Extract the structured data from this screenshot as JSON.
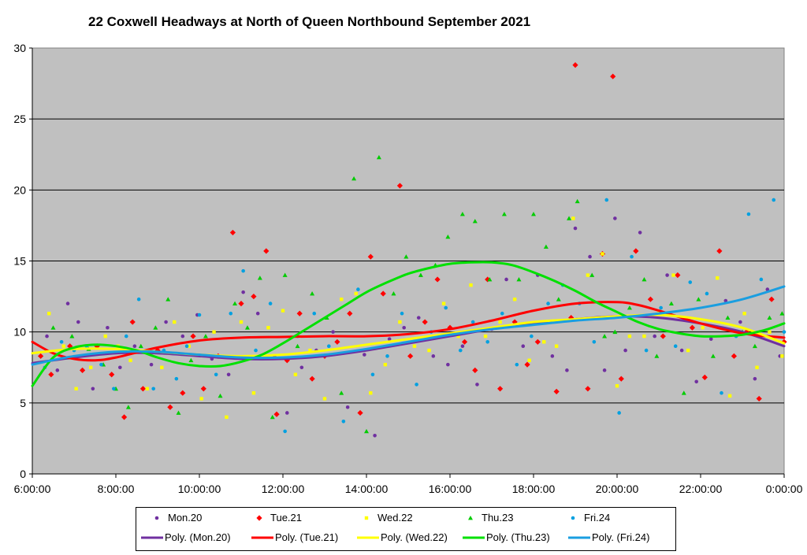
{
  "chart_data": {
    "type": "scatter",
    "title": "22 Coxwell Headways at North of Queen Northbound September 2021",
    "xlabel": "",
    "ylabel": "",
    "xlim": [
      6,
      24
    ],
    "ylim": [
      0,
      30
    ],
    "x_ticks": [
      "6:00:00",
      "8:00:00",
      "10:00:00",
      "12:00:00",
      "14:00:00",
      "16:00:00",
      "18:00:00",
      "20:00:00",
      "22:00:00",
      "0:00:00"
    ],
    "y_ticks": [
      "0",
      "5",
      "10",
      "15",
      "20",
      "25",
      "30"
    ],
    "grid": "horizontal",
    "background_color": "#c0c0c0",
    "legend_placement": "bottom",
    "x_unit": "hour of day (24 = 0:00:00 next day)",
    "series": [
      {
        "name": "Mon.20",
        "marker": "circle",
        "color": "#7030a0",
        "x": [
          6.35,
          6.6,
          6.85,
          7.1,
          7.45,
          7.8,
          8.1,
          8.45,
          8.85,
          9.2,
          9.6,
          9.95,
          10.3,
          10.7,
          11.05,
          11.4,
          11.8,
          12.1,
          12.45,
          12.8,
          13.2,
          13.55,
          13.95,
          14.2,
          14.55,
          14.9,
          15.25,
          15.6,
          15.95,
          16.3,
          16.65,
          17.0,
          17.35,
          17.75,
          18.1,
          18.45,
          18.8,
          19.0,
          19.35,
          19.7,
          19.95,
          20.2,
          20.55,
          20.9,
          21.2,
          21.55,
          21.9,
          22.25,
          22.6,
          22.95,
          23.3,
          23.6,
          23.9
        ],
        "y": [
          9.7,
          7.3,
          12.0,
          10.7,
          6.0,
          10.3,
          7.5,
          9.0,
          7.7,
          10.7,
          9.7,
          11.2,
          8.1,
          7.0,
          12.8,
          11.3,
          8.3,
          4.3,
          7.5,
          8.7,
          10.0,
          4.7,
          8.4,
          2.7,
          9.5,
          10.3,
          11.0,
          8.3,
          7.7,
          9.0,
          6.3,
          10.2,
          13.7,
          9.0,
          14.0,
          8.3,
          7.3,
          17.3,
          15.3,
          7.3,
          18.0,
          8.7,
          17.0,
          9.7,
          14.0,
          8.7,
          6.5,
          9.5,
          12.2,
          10.7,
          6.7,
          13.0,
          8.3
        ]
      },
      {
        "name": "Tue.21",
        "marker": "diamond",
        "color": "#ff0000",
        "x": [
          6.2,
          6.45,
          6.9,
          7.2,
          7.55,
          7.9,
          8.2,
          8.4,
          8.65,
          9.0,
          9.3,
          9.6,
          9.85,
          10.1,
          10.45,
          10.8,
          11.0,
          11.3,
          11.6,
          11.85,
          12.1,
          12.4,
          12.7,
          13.0,
          13.3,
          13.6,
          13.85,
          14.1,
          14.4,
          14.8,
          15.05,
          15.4,
          15.7,
          16.0,
          16.35,
          16.6,
          16.9,
          17.2,
          17.55,
          17.85,
          18.1,
          18.55,
          18.9,
          19.0,
          19.3,
          19.65,
          19.9,
          20.1,
          20.45,
          20.8,
          21.1,
          21.45,
          21.8,
          22.1,
          22.45,
          22.8,
          23.1,
          23.4,
          23.7,
          24.0
        ],
        "y": [
          8.3,
          7.0,
          9.0,
          7.3,
          9.0,
          7.0,
          4.0,
          10.7,
          6.0,
          8.7,
          4.7,
          5.7,
          9.7,
          6.0,
          8.3,
          17.0,
          12.0,
          12.5,
          15.7,
          4.2,
          8.0,
          11.3,
          6.7,
          8.3,
          9.3,
          11.3,
          4.3,
          15.3,
          12.7,
          20.3,
          8.3,
          10.7,
          13.7,
          10.3,
          9.3,
          7.3,
          13.7,
          6.0,
          10.7,
          7.7,
          9.3,
          5.8,
          11.0,
          28.8,
          6.0,
          15.5,
          28.0,
          6.7,
          15.7,
          12.3,
          9.7,
          14.0,
          10.3,
          6.8,
          15.7,
          8.3,
          10.0,
          5.3,
          12.3,
          9.3
        ]
      },
      {
        "name": "Wed.22",
        "marker": "square",
        "color": "#ffff00",
        "x": [
          6.4,
          6.75,
          7.05,
          7.4,
          7.75,
          8.05,
          8.35,
          8.75,
          9.1,
          9.4,
          9.75,
          10.05,
          10.35,
          10.65,
          11.0,
          11.3,
          11.65,
          12.0,
          12.3,
          12.65,
          13.0,
          13.4,
          13.75,
          14.1,
          14.45,
          14.8,
          15.15,
          15.5,
          15.85,
          16.2,
          16.5,
          16.85,
          17.2,
          17.55,
          17.9,
          18.25,
          18.55,
          18.95,
          19.3,
          19.65,
          20.0,
          20.3,
          20.65,
          21.0,
          21.35,
          21.7,
          22.05,
          22.4,
          22.7,
          23.05,
          23.35,
          23.65,
          23.95
        ],
        "y": [
          11.3,
          9.0,
          6.0,
          7.5,
          9.7,
          9.0,
          8.0,
          6.0,
          7.5,
          10.7,
          9.0,
          5.3,
          10.0,
          4.0,
          10.7,
          5.7,
          10.3,
          11.5,
          7.0,
          8.7,
          5.3,
          12.3,
          12.7,
          5.7,
          7.7,
          10.7,
          9.0,
          8.7,
          12.0,
          9.7,
          13.3,
          9.7,
          10.7,
          12.3,
          8.0,
          9.3,
          9.0,
          18.0,
          14.0,
          15.5,
          6.2,
          9.7,
          9.7,
          11.3,
          14.0,
          8.7,
          10.3,
          13.8,
          5.5,
          11.3,
          7.5,
          10.0,
          8.3
        ]
      },
      {
        "name": "Thu.23",
        "marker": "triangle",
        "color": "#00cc00",
        "x": [
          6.5,
          6.95,
          7.35,
          7.7,
          8.0,
          8.3,
          8.6,
          8.95,
          9.25,
          9.5,
          9.8,
          10.15,
          10.5,
          10.85,
          11.15,
          11.45,
          11.75,
          12.05,
          12.35,
          12.7,
          13.05,
          13.4,
          13.7,
          14.0,
          14.3,
          14.65,
          14.95,
          15.3,
          15.65,
          15.95,
          16.3,
          16.6,
          16.95,
          17.3,
          17.65,
          18.0,
          18.3,
          18.6,
          18.85,
          19.05,
          19.4,
          19.7,
          19.95,
          20.3,
          20.65,
          20.95,
          21.3,
          21.6,
          21.95,
          22.3,
          22.65,
          23.0,
          23.3,
          23.65,
          23.95
        ],
        "y": [
          10.3,
          9.7,
          8.8,
          7.7,
          6.0,
          4.7,
          9.0,
          10.3,
          12.3,
          4.3,
          8.0,
          9.7,
          5.5,
          12.0,
          10.3,
          13.8,
          4.0,
          14.0,
          9.0,
          12.7,
          11.0,
          5.7,
          20.8,
          3.0,
          22.3,
          12.7,
          15.3,
          14.0,
          14.7,
          16.7,
          18.3,
          17.8,
          13.7,
          18.3,
          13.7,
          18.3,
          16.0,
          12.3,
          18.0,
          19.2,
          14.0,
          9.7,
          10.0,
          11.7,
          13.7,
          8.3,
          12.0,
          5.7,
          12.3,
          8.3,
          11.0,
          10.0,
          9.0,
          11.0,
          11.3
        ]
      },
      {
        "name": "Fri.24",
        "marker": "circle",
        "color": "#00a0e0",
        "x": [
          6.3,
          6.7,
          7.0,
          7.3,
          7.65,
          7.95,
          8.25,
          8.55,
          8.9,
          9.15,
          9.45,
          9.7,
          10.0,
          10.4,
          10.75,
          11.05,
          11.35,
          11.7,
          12.05,
          12.35,
          12.75,
          13.1,
          13.45,
          13.8,
          14.15,
          14.5,
          14.85,
          15.2,
          15.55,
          15.9,
          16.25,
          16.55,
          16.9,
          17.25,
          17.6,
          17.95,
          18.35,
          18.7,
          19.1,
          19.45,
          19.75,
          20.05,
          20.35,
          20.7,
          21.05,
          21.4,
          21.75,
          22.15,
          22.5,
          22.85,
          23.15,
          23.45,
          23.75,
          24.0
        ],
        "y": [
          7.5,
          9.3,
          8.7,
          9.0,
          7.7,
          6.0,
          9.7,
          12.3,
          6.0,
          8.7,
          6.7,
          9.0,
          11.2,
          7.0,
          11.3,
          14.3,
          8.7,
          12.0,
          3.0,
          9.7,
          11.3,
          9.0,
          3.7,
          13.0,
          7.0,
          8.3,
          11.3,
          6.3,
          10.0,
          11.7,
          8.7,
          10.7,
          9.3,
          11.3,
          7.7,
          9.7,
          12.0,
          13.3,
          12.0,
          9.3,
          19.3,
          4.3,
          15.3,
          8.7,
          11.7,
          9.0,
          13.5,
          12.7,
          5.7,
          9.7,
          18.3,
          13.7,
          19.3,
          10.0
        ]
      }
    ],
    "trendlines": [
      {
        "name": "Poly. (Mon.20)",
        "color": "#7030a0",
        "x": [
          6,
          7,
          8,
          9,
          10,
          11,
          12,
          13,
          14,
          15,
          16,
          17,
          18,
          19,
          20,
          21,
          22,
          23,
          24
        ],
        "y": [
          7.8,
          8.2,
          8.5,
          8.5,
          8.3,
          8.1,
          8.1,
          8.3,
          8.7,
          9.2,
          9.7,
          10.2,
          10.6,
          10.9,
          11.1,
          11.0,
          10.6,
          10.0,
          9.0
        ]
      },
      {
        "name": "Poly. (Tue.21)",
        "color": "#ff0000",
        "x": [
          6,
          6.5,
          7,
          7.5,
          8,
          9,
          10,
          11,
          12,
          13,
          14,
          15,
          16,
          17,
          18,
          19,
          20,
          20.5,
          21,
          22,
          23,
          24
        ],
        "y": [
          9.3,
          8.5,
          8.1,
          8.0,
          8.2,
          8.9,
          9.4,
          9.6,
          9.65,
          9.7,
          9.7,
          9.85,
          10.2,
          10.8,
          11.5,
          12.0,
          12.1,
          11.9,
          11.5,
          10.6,
          9.9,
          9.6
        ]
      },
      {
        "name": "Poly. (Wed.22)",
        "color": "#ffff00",
        "x": [
          6,
          7,
          8,
          9,
          10,
          11,
          12,
          13,
          14,
          15,
          16,
          17,
          18,
          19,
          20,
          21,
          22,
          23,
          24
        ],
        "y": [
          8.5,
          8.8,
          8.8,
          8.6,
          8.4,
          8.3,
          8.4,
          8.7,
          9.1,
          9.5,
          9.9,
          10.3,
          10.7,
          10.9,
          11.1,
          11.2,
          10.9,
          10.3,
          9.2
        ]
      },
      {
        "name": "Poly. (Thu.23)",
        "color": "#00e000",
        "x": [
          6,
          6.5,
          7,
          7.5,
          8,
          8.5,
          9,
          9.5,
          10,
          10.5,
          11,
          11.5,
          12,
          12.5,
          13,
          13.5,
          14,
          14.5,
          15,
          15.5,
          16,
          16.5,
          17,
          17.5,
          18,
          18.5,
          19,
          19.5,
          20,
          20.5,
          21,
          21.5,
          22,
          22.5,
          23,
          23.5,
          24
        ],
        "y": [
          6.2,
          8.2,
          8.9,
          9.1,
          9.0,
          8.7,
          8.2,
          7.8,
          7.6,
          7.6,
          7.9,
          8.4,
          9.2,
          10.1,
          11.0,
          11.9,
          12.8,
          13.5,
          14.1,
          14.5,
          14.8,
          14.9,
          14.9,
          14.7,
          14.2,
          13.6,
          12.9,
          12.1,
          11.4,
          10.7,
          10.2,
          9.9,
          9.7,
          9.7,
          9.8,
          10.1,
          10.6
        ]
      },
      {
        "name": "Poly. (Fri.24)",
        "color": "#1a9ee0",
        "x": [
          6,
          7,
          8,
          9,
          10,
          11,
          12,
          13,
          14,
          15,
          16,
          17,
          18,
          19,
          20,
          21,
          22,
          23,
          24
        ],
        "y": [
          7.7,
          8.3,
          8.6,
          8.6,
          8.4,
          8.2,
          8.2,
          8.4,
          8.8,
          9.3,
          9.8,
          10.2,
          10.5,
          10.8,
          11.0,
          11.3,
          11.7,
          12.3,
          13.2
        ]
      }
    ]
  }
}
